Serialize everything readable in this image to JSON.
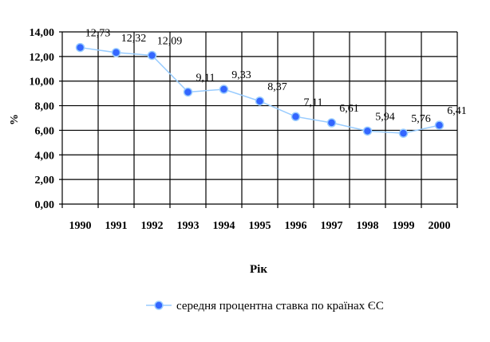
{
  "chart_data": {
    "type": "line",
    "title": "",
    "xlabel": "Рік",
    "ylabel": "%",
    "categories": [
      "1990",
      "1991",
      "1992",
      "1993",
      "1994",
      "1995",
      "1996",
      "1997",
      "1998",
      "1999",
      "2000"
    ],
    "series": [
      {
        "name": "середня процентна ставка по країнах ЄС",
        "values": [
          12.73,
          12.32,
          12.09,
          9.11,
          9.33,
          8.37,
          7.11,
          6.61,
          5.94,
          5.76,
          6.41
        ],
        "labels": [
          "12,73",
          "12,32",
          "12,09",
          "9,11",
          "9,33",
          "8,37",
          "7,11",
          "6,61",
          "5,94",
          "5,76",
          "6,41"
        ],
        "line_color": "#99ccff",
        "marker_color": "#3366ff"
      }
    ],
    "yticks": [
      "0,00",
      "2,00",
      "4,00",
      "6,00",
      "8,00",
      "10,00",
      "12,00",
      "14,00"
    ],
    "ylim": [
      0,
      14
    ],
    "grid": true,
    "legend_position": "bottom"
  }
}
